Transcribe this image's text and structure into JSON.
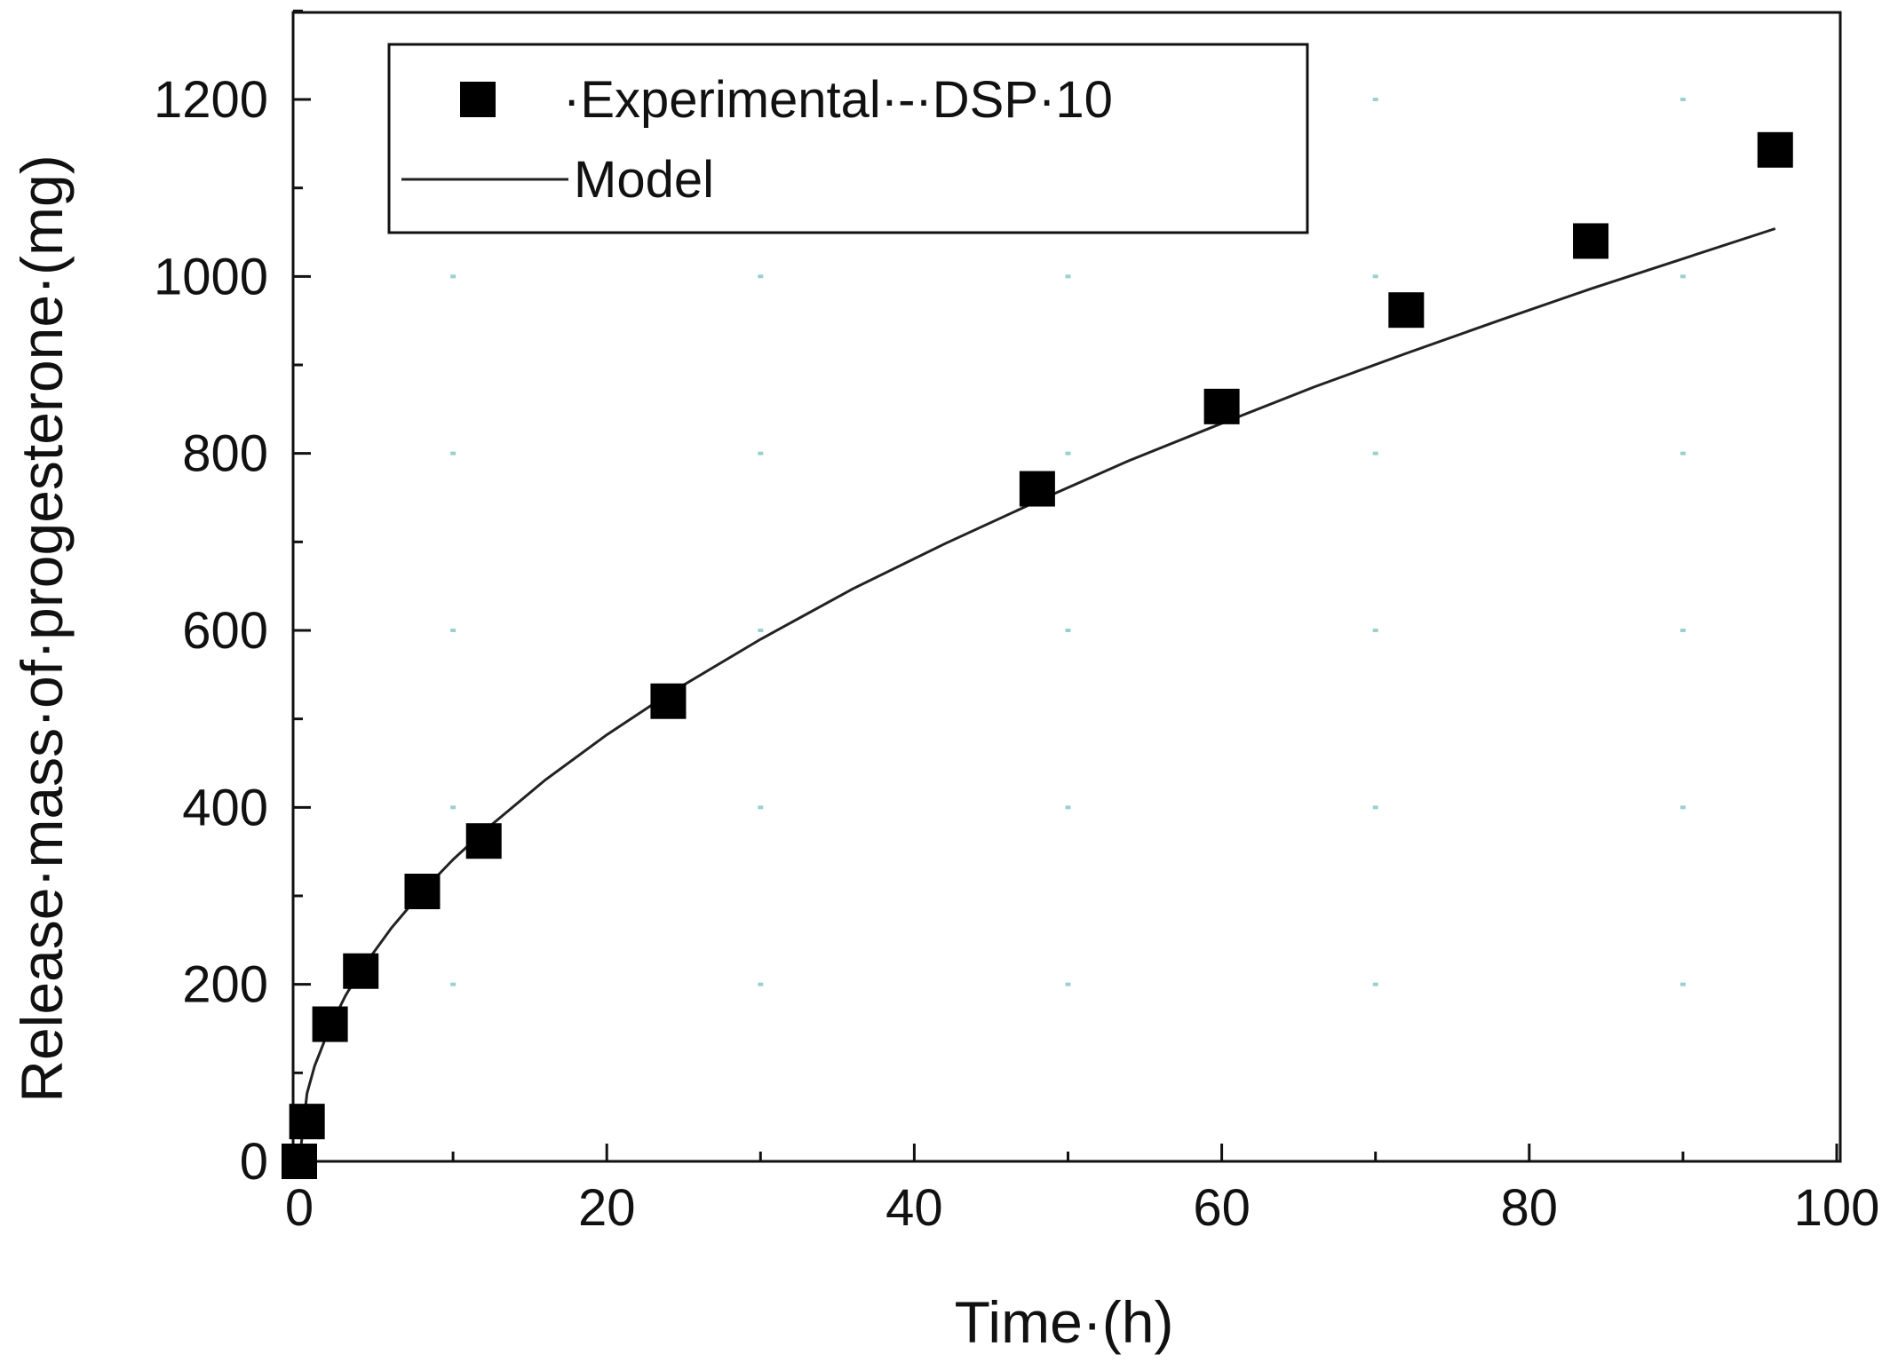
{
  "chart_data": {
    "type": "scatter",
    "xlabel": "Time·(h)",
    "ylabel": "Release·mass·of·progesterone·(mg)",
    "xlim": [
      0,
      100
    ],
    "ylim": [
      0,
      1300
    ],
    "x_ticks": [
      0,
      20,
      40,
      60,
      80,
      100
    ],
    "x_tick_labels": [
      "0",
      "20",
      "40",
      "60",
      "80",
      "100"
    ],
    "y_ticks": [
      0,
      200,
      400,
      600,
      800,
      1000,
      1200
    ],
    "y_tick_labels": [
      "0",
      "200",
      "400",
      "600",
      "800",
      "1000",
      "1200"
    ],
    "grid": "dotted",
    "legend_position": "top-left",
    "series": [
      {
        "name": "·Experimental·-·DSP·10",
        "kind": "scatter",
        "marker": "square",
        "color": "#000000",
        "x": [
          0,
          0.5,
          2,
          4,
          8,
          12,
          24,
          48,
          60,
          72,
          84,
          96
        ],
        "y": [
          0,
          45,
          155,
          215,
          305,
          362,
          520,
          760,
          853,
          962,
          1040,
          1143
        ]
      },
      {
        "name": "Model",
        "kind": "line",
        "color": "#222222",
        "x": [
          0,
          0.5,
          1,
          2,
          3,
          4,
          6,
          8,
          10,
          12,
          16,
          20,
          24,
          30,
          36,
          42,
          48,
          54,
          60,
          66,
          72,
          78,
          84,
          90,
          96
        ],
        "y": [
          0,
          77,
          108,
          152,
          187,
          216,
          264,
          305,
          341,
          373,
          431,
          482,
          528,
          590,
          647,
          698,
          746,
          792,
          834,
          875,
          913,
          950,
          986,
          1020,
          1054
        ]
      }
    ]
  }
}
